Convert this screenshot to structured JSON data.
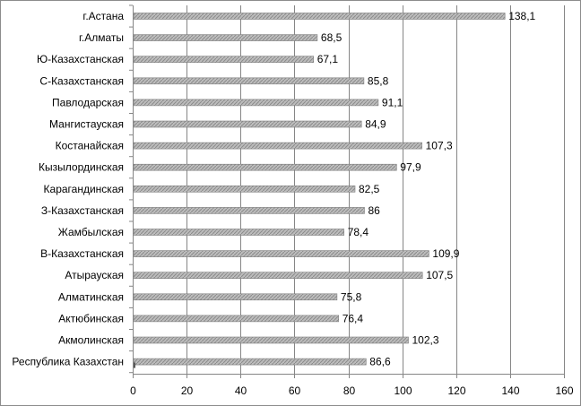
{
  "chart_data": {
    "type": "bar",
    "orientation": "horizontal",
    "categories": [
      "г.Астана",
      "г.Алматы",
      "Ю-Казахстанская",
      "С-Казахстанская",
      "Павлодарская",
      "Мангистауская",
      "Костанайская",
      "Кызылординская",
      "Карагандинская",
      "З-Казахстанская",
      "Жамбылская",
      "В-Казахстанская",
      "Атырауская",
      "Алматинская",
      "Актюбинская",
      "Акмолинская",
      "Республика Казахстан"
    ],
    "values": [
      138.1,
      68.5,
      67.1,
      85.8,
      91.1,
      84.9,
      107.3,
      97.9,
      82.5,
      86,
      78.4,
      109.9,
      107.5,
      75.8,
      76.4,
      102.3,
      86.6
    ],
    "data_labels": [
      "138,1",
      "68,5",
      "67,1",
      "85,8",
      "91,1",
      "84,9",
      "107,3",
      "97,9",
      "82,5",
      "86",
      "78,4",
      "109,9",
      "107,5",
      "75,8",
      "76,4",
      "102,3",
      "86,6"
    ],
    "secondary_marker": {
      "category": "Республика Казахстан",
      "value": 1
    },
    "xlim": [
      0,
      160
    ],
    "x_ticks": [
      0,
      20,
      40,
      60,
      80,
      100,
      120,
      140,
      160
    ],
    "x_tick_labels": [
      "0",
      "20",
      "40",
      "60",
      "80",
      "100",
      "120",
      "140",
      "160"
    ],
    "grid": "vertical",
    "legend": "none",
    "title": "",
    "xlabel": "",
    "ylabel": "",
    "colors": {
      "bar": "#a6a6a6",
      "bar_edge": "#7f7f7f",
      "marker": "#595959",
      "grid": "#868686",
      "axis": "#868686"
    }
  }
}
